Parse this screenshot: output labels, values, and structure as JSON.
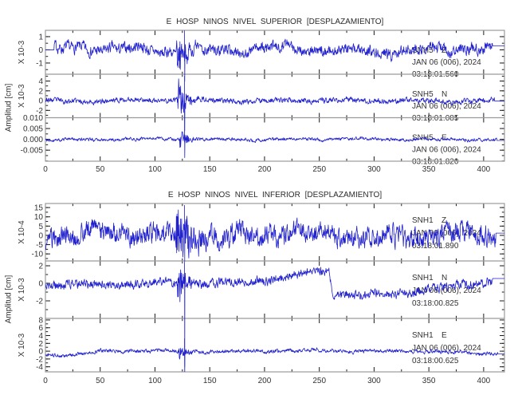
{
  "chart_data": {
    "type": "line",
    "description": "Six-channel seismogram display, displacement vs time, event burst arriving near x=127",
    "style": {
      "trace_color": "#2121cd",
      "frame_color": "#9b9b9b",
      "tick_color": "#1a1a1a",
      "text_color": "#333333",
      "background": "#ffffff"
    },
    "xaxis": {
      "min": 0,
      "max": 419,
      "minor_step": 25,
      "major_ticks": [
        0,
        50,
        100,
        150,
        200,
        250,
        300,
        350,
        400
      ],
      "major_labels": [
        "0",
        "50",
        "100",
        "150",
        "200",
        "250",
        "300",
        "350",
        "400"
      ]
    },
    "panels": [
      {
        "title": "E HOSP NINOS NIVEL SUPERIOR [DESPLAZAMIENTO]",
        "ylabel": "Amplitud [cm]",
        "traces": [
          {
            "station": "SNH5",
            "component": "Z",
            "date": "JAN 06 (006), 2024",
            "time": "03:18:01.560",
            "scale_label": "X 10-3",
            "yticks": [
              [
                1,
                "1"
              ],
              [
                0,
                "0"
              ],
              [
                -1,
                "-1"
              ]
            ],
            "yminor": 0.5,
            "ylim": [
              -1.85,
              1.48
            ],
            "synth": {
              "seed": 7,
              "noise": 0.34,
              "wander": 0.33,
              "burst_t": 119,
              "burst_amp": 1.05,
              "burst_tau": 9,
              "spike_x": 127,
              "spike": [
                1.45,
                -2.4
              ],
              "flat_start": [
                8,
                0
              ],
              "flat_end": [
                408,
                0.3
              ]
            }
          },
          {
            "station": "SNH5",
            "component": "N",
            "date": "JAN 06 (006), 2024",
            "time": "03:18:01.085",
            "scale_label": "X 10-3",
            "yticks": [
              [
                4,
                "4"
              ],
              [
                2,
                "2"
              ],
              [
                0,
                "0"
              ],
              [
                -2,
                "-2"
              ]
            ],
            "yminor": 1,
            "ylim": [
              -3.5,
              5.4
            ],
            "synth": {
              "seed": 23,
              "noise": 0.42,
              "wander": 0.3,
              "burst_t": 120,
              "burst_amp": 3.2,
              "burst_tau": 6,
              "spike_x": 127,
              "spike": [
                5.0,
                -6.2
              ],
              "flat_end": [
                410,
                -0.1
              ]
            }
          },
          {
            "station": "SNH5",
            "component": "E",
            "date": "JAN 06 (006), 2024",
            "time": "03:18:01.820",
            "scale_label": "",
            "yticks": [
              [
                0.01,
                "0.010"
              ],
              [
                0.005,
                "0.005"
              ],
              [
                0,
                "0.000"
              ],
              [
                -0.005,
                "-0.005"
              ]
            ],
            "yminor": 0.0025,
            "ylim": [
              -0.0101,
              0.01
            ],
            "synth": {
              "seed": 41,
              "noise": 0.0006,
              "wander": 0.00045,
              "burst_t": 122,
              "burst_amp": 0.0048,
              "burst_tau": 5,
              "spike_x": 127,
              "spike": [
                0.014,
                -0.0085
              ],
              "flat_end": [
                412,
                -0.0005
              ]
            }
          }
        ]
      },
      {
        "title": "E HOSP NINOS NIVEL INFERIOR [DESPLAZAMIENTO]",
        "ylabel": "Amplitud [cm]",
        "traces": [
          {
            "station": "SNH1",
            "component": "Z",
            "date": "JAN 06 (006), 2024",
            "time": "03:18:01.890",
            "scale_label": "X 10-4",
            "yticks": [
              [
                15,
                "15"
              ],
              [
                10,
                "10"
              ],
              [
                5,
                "5"
              ],
              [
                0,
                "0"
              ],
              [
                -5,
                "-5"
              ],
              [
                -10,
                "-10"
              ]
            ],
            "yminor": 2.5,
            "ylim": [
              -13.8,
              17.2
            ],
            "synth": {
              "seed": 61,
              "noise": 4.4,
              "wander": 3.1,
              "burst_t": 118,
              "burst_amp": 9,
              "burst_tau": 13,
              "spike_x": 127,
              "spike": [
                16.2,
                -14.3
              ],
              "flat_end": [
                411,
                1.2
              ]
            }
          },
          {
            "station": "SNH1",
            "component": "N",
            "date": "JAN 06 (006), 2024",
            "time": "03:18:00.825",
            "scale_label": "X 10-3",
            "yticks": [
              [
                2,
                "2"
              ],
              [
                0,
                "0"
              ],
              [
                -2,
                "-2"
              ]
            ],
            "yminor": 1,
            "ylim": [
              -4.0,
              2.55
            ],
            "synth": {
              "seed": 83,
              "noise": 0.4,
              "wander": 0.22,
              "burst_t": 120,
              "burst_amp": 1.7,
              "burst_tau": 7,
              "spike_x": 127,
              "spike": [
                2.4,
                -9.5
              ],
              "steps": [
                [
                  0,
                  -0.1
                ],
                [
                  135,
                  -0.1
                ],
                [
                  165,
                  0.1
                ],
                [
                  205,
                  0.6
                ],
                [
                  235,
                  1.1
                ],
                [
                  253,
                  1.45
                ],
                [
                  259,
                  1.55
                ],
                [
                  262,
                  -1.3
                ],
                [
                  295,
                  -1.45
                ],
                [
                  325,
                  -1.15
                ],
                [
                  350,
                  -0.6
                ],
                [
                  385,
                  -0.05
                ],
                [
                  419,
                  0.3
                ]
              ],
              "flat_end": [
                408,
                0.55
              ]
            }
          },
          {
            "station": "SNH1",
            "component": "E",
            "date": "JAN 06 (006), 2024",
            "time": "03:18:00.625",
            "scale_label": "X 10-3",
            "yticks": [
              [
                8,
                "8"
              ],
              [
                6,
                "6"
              ],
              [
                4,
                "4"
              ],
              [
                2,
                "2"
              ],
              [
                0,
                "0"
              ],
              [
                -2,
                "-2"
              ],
              [
                -4,
                "-4"
              ]
            ],
            "yminor": 1,
            "ylim": [
              -5.3,
              8.4
            ],
            "synth": {
              "seed": 97,
              "noise": 0.38,
              "wander": 0.28,
              "burst_t": 121,
              "burst_amp": 1.2,
              "burst_tau": 7,
              "spike_x": 127,
              "spike": [
                3.2,
                -7.0
              ],
              "steps": [
                [
                  0,
                  -0.8
                ],
                [
                  22,
                  -1.05
                ],
                [
                  48,
                  -0.25
                ],
                [
                  70,
                  0
                ],
                [
                  350,
                  0.1
                ],
                [
                  385,
                  -0.55
                ],
                [
                  419,
                  -0.75
                ]
              ],
              "flat_end": [
                413,
                -0.7
              ]
            }
          }
        ]
      }
    ]
  }
}
